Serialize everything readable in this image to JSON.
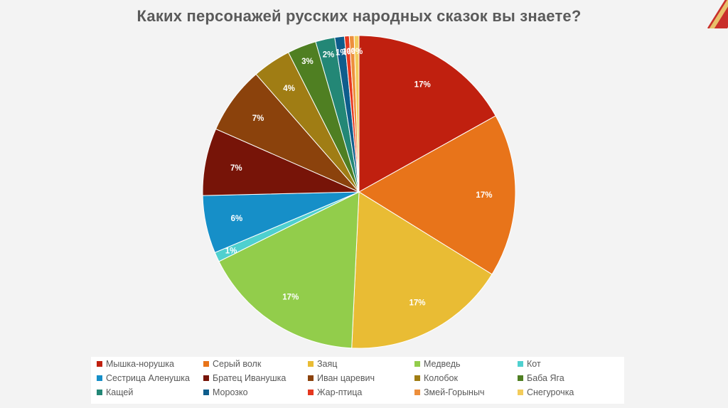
{
  "title": "Каких персонажей русских народных сказок вы знаете?",
  "chart_data": {
    "type": "pie",
    "title": "Каких персонажей русских народных сказок вы знаете?",
    "legend_position": "bottom",
    "slices": [
      {
        "name": "Мышка-норушка",
        "value": 17,
        "label": "17%",
        "color": "#c0200f"
      },
      {
        "name": "Серый волк",
        "value": 17,
        "label": "17%",
        "color": "#e8741a"
      },
      {
        "name": "Заяц",
        "value": 17,
        "label": "17%",
        "color": "#e9bc34"
      },
      {
        "name": "Медведь",
        "value": 17,
        "label": "17%",
        "color": "#92cd4b"
      },
      {
        "name": "Кот",
        "value": 1,
        "label": "1%",
        "color": "#4fd0cf"
      },
      {
        "name": "Сестрица Аленушка",
        "value": 6,
        "label": "6%",
        "color": "#168fc8"
      },
      {
        "name": "Братец Иванушка",
        "value": 7,
        "label": "7%",
        "color": "#771408"
      },
      {
        "name": "Иван царевич",
        "value": 7,
        "label": "7%",
        "color": "#8b420c"
      },
      {
        "name": "Колобок",
        "value": 4,
        "label": "4%",
        "color": "#a07d14"
      },
      {
        "name": "Баба Яга",
        "value": 3,
        "label": "3%",
        "color": "#4f7f22"
      },
      {
        "name": "Кащей",
        "value": 2,
        "label": "2%",
        "color": "#238776"
      },
      {
        "name": "Морозко",
        "value": 1,
        "label": "1%",
        "color": "#0e5d8c"
      },
      {
        "name": "Жар-птица",
        "value": 0.5,
        "label": "1%",
        "color": "#e5371f"
      },
      {
        "name": "Змей-Горыныч",
        "value": 0.5,
        "label": "0%",
        "color": "#ed8f3c"
      },
      {
        "name": "Снегурочка",
        "value": 0.5,
        "label": "0%",
        "color": "#f3cc5b"
      }
    ]
  }
}
